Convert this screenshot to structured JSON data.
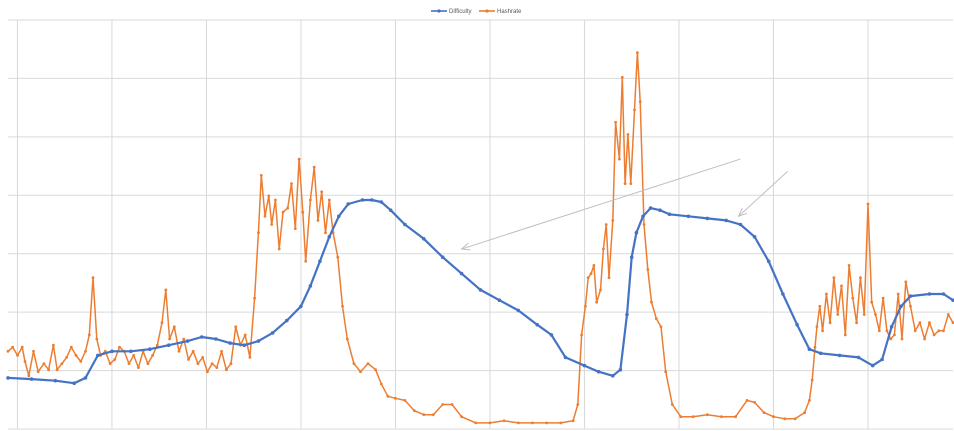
{
  "chart_data": {
    "type": "line",
    "title": "",
    "xlabel": "",
    "ylabel": "",
    "grid": true,
    "legend_position": "top-center",
    "xlim": [
      0,
      1000
    ],
    "ylim": [
      0,
      100
    ],
    "colors": {
      "difficulty": "#4472C4",
      "hashrate": "#ED7D31",
      "gridline": "#D9D9D9",
      "annotation_arrow": "#BFBFBF"
    },
    "series": [
      {
        "name": "Difficulty",
        "color": "#4472C4",
        "marker": "circle",
        "points": [
          [
            0,
            12.5
          ],
          [
            25,
            12.2
          ],
          [
            50,
            11.8
          ],
          [
            70,
            11.2
          ],
          [
            82,
            12.5
          ],
          [
            95,
            18
          ],
          [
            110,
            19
          ],
          [
            130,
            19
          ],
          [
            150,
            19.5
          ],
          [
            170,
            20.5
          ],
          [
            190,
            21.5
          ],
          [
            205,
            22.5
          ],
          [
            220,
            22
          ],
          [
            235,
            21
          ],
          [
            250,
            20.5
          ],
          [
            265,
            21.5
          ],
          [
            280,
            23.5
          ],
          [
            295,
            26.5
          ],
          [
            310,
            30
          ],
          [
            320,
            35
          ],
          [
            330,
            41
          ],
          [
            340,
            47
          ],
          [
            350,
            52
          ],
          [
            360,
            55
          ],
          [
            375,
            56
          ],
          [
            385,
            56
          ],
          [
            395,
            55.5
          ],
          [
            405,
            53.5
          ],
          [
            420,
            50
          ],
          [
            440,
            46.5
          ],
          [
            460,
            42
          ],
          [
            480,
            38
          ],
          [
            500,
            34
          ],
          [
            520,
            31.5
          ],
          [
            540,
            29
          ],
          [
            560,
            25.5
          ],
          [
            575,
            23
          ],
          [
            590,
            17.5
          ],
          [
            610,
            15.5
          ],
          [
            625,
            14
          ],
          [
            640,
            13
          ],
          [
            648,
            14.5
          ],
          [
            655,
            28
          ],
          [
            660,
            42
          ],
          [
            665,
            48
          ],
          [
            672,
            52
          ],
          [
            680,
            54
          ],
          [
            690,
            53.5
          ],
          [
            700,
            52.5
          ],
          [
            720,
            52
          ],
          [
            740,
            51.5
          ],
          [
            760,
            51
          ],
          [
            775,
            50
          ],
          [
            790,
            47
          ],
          [
            805,
            41
          ],
          [
            820,
            33
          ],
          [
            835,
            25.5
          ],
          [
            848,
            19.5
          ],
          [
            860,
            18.5
          ],
          [
            880,
            18
          ],
          [
            900,
            17.5
          ],
          [
            915,
            15.5
          ],
          [
            925,
            17
          ],
          [
            935,
            25
          ],
          [
            945,
            30
          ],
          [
            955,
            32.5
          ],
          [
            975,
            33
          ],
          [
            990,
            33
          ],
          [
            1000,
            31.5
          ]
        ]
      },
      {
        "name": "Hashrate",
        "color": "#ED7D31",
        "marker": "circle",
        "points": [
          [
            0,
            19
          ],
          [
            5,
            20
          ],
          [
            10,
            18
          ],
          [
            15,
            20
          ],
          [
            18,
            16.5
          ],
          [
            22,
            13
          ],
          [
            27,
            19
          ],
          [
            32,
            14
          ],
          [
            38,
            16
          ],
          [
            43,
            14.5
          ],
          [
            48,
            20.5
          ],
          [
            52,
            14.5
          ],
          [
            57,
            16
          ],
          [
            62,
            17.5
          ],
          [
            67,
            20
          ],
          [
            72,
            18
          ],
          [
            77,
            16.5
          ],
          [
            82,
            19
          ],
          [
            86,
            23
          ],
          [
            90,
            37
          ],
          [
            94,
            22
          ],
          [
            98,
            18
          ],
          [
            103,
            19
          ],
          [
            108,
            16
          ],
          [
            113,
            17
          ],
          [
            118,
            20
          ],
          [
            123,
            19
          ],
          [
            128,
            16
          ],
          [
            133,
            18
          ],
          [
            138,
            15
          ],
          [
            143,
            19
          ],
          [
            148,
            16
          ],
          [
            153,
            18
          ],
          [
            158,
            20.5
          ],
          [
            163,
            26
          ],
          [
            167,
            34
          ],
          [
            171,
            22
          ],
          [
            176,
            25
          ],
          [
            181,
            19
          ],
          [
            186,
            22
          ],
          [
            191,
            17
          ],
          [
            196,
            19
          ],
          [
            201,
            16
          ],
          [
            206,
            17.5
          ],
          [
            211,
            14
          ],
          [
            216,
            16
          ],
          [
            221,
            15
          ],
          [
            226,
            19
          ],
          [
            231,
            14.5
          ],
          [
            236,
            16
          ],
          [
            241,
            25
          ],
          [
            246,
            20.5
          ],
          [
            251,
            23
          ],
          [
            256,
            17.5
          ],
          [
            261,
            32
          ],
          [
            265,
            48
          ],
          [
            268,
            62
          ],
          [
            272,
            52
          ],
          [
            276,
            57
          ],
          [
            279,
            50
          ],
          [
            283,
            56
          ],
          [
            287,
            44
          ],
          [
            291,
            53
          ],
          [
            296,
            54
          ],
          [
            300,
            60
          ],
          [
            304,
            49
          ],
          [
            308,
            66
          ],
          [
            312,
            53
          ],
          [
            315,
            41
          ],
          [
            320,
            56
          ],
          [
            324,
            64
          ],
          [
            328,
            51
          ],
          [
            332,
            58
          ],
          [
            336,
            48
          ],
          [
            340,
            56
          ],
          [
            344,
            48
          ],
          [
            349,
            42
          ],
          [
            354,
            30
          ],
          [
            359,
            22
          ],
          [
            366,
            16
          ],
          [
            373,
            14
          ],
          [
            381,
            16
          ],
          [
            389,
            14.5
          ],
          [
            395,
            11
          ],
          [
            402,
            8
          ],
          [
            410,
            7.5
          ],
          [
            420,
            7
          ],
          [
            430,
            4.5
          ],
          [
            440,
            3.5
          ],
          [
            450,
            3.5
          ],
          [
            460,
            6
          ],
          [
            470,
            6
          ],
          [
            480,
            3
          ],
          [
            495,
            1.5
          ],
          [
            510,
            1.5
          ],
          [
            525,
            2
          ],
          [
            540,
            1.5
          ],
          [
            555,
            1.5
          ],
          [
            570,
            1.5
          ],
          [
            585,
            1.5
          ],
          [
            598,
            2
          ],
          [
            603,
            6
          ],
          [
            607,
            23
          ],
          [
            611,
            30
          ],
          [
            614,
            37
          ],
          [
            617,
            38
          ],
          [
            620,
            40
          ],
          [
            623,
            31
          ],
          [
            627,
            34
          ],
          [
            630,
            44
          ],
          [
            633,
            50
          ],
          [
            636,
            37
          ],
          [
            640,
            51
          ],
          [
            643,
            75
          ],
          [
            647,
            66
          ],
          [
            650,
            86
          ],
          [
            653,
            60
          ],
          [
            656,
            72
          ],
          [
            659,
            60
          ],
          [
            663,
            78
          ],
          [
            666,
            92
          ],
          [
            669,
            80
          ],
          [
            673,
            50
          ],
          [
            677,
            39
          ],
          [
            681,
            31
          ],
          [
            686,
            27
          ],
          [
            691,
            25
          ],
          [
            696,
            14
          ],
          [
            703,
            6
          ],
          [
            712,
            3
          ],
          [
            725,
            3
          ],
          [
            740,
            3.5
          ],
          [
            755,
            3
          ],
          [
            770,
            3
          ],
          [
            782,
            7
          ],
          [
            790,
            6.5
          ],
          [
            800,
            4
          ],
          [
            810,
            3
          ],
          [
            822,
            2.5
          ],
          [
            833,
            2.5
          ],
          [
            843,
            4
          ],
          [
            848,
            7
          ],
          [
            851,
            12
          ],
          [
            854,
            20
          ],
          [
            856,
            25
          ],
          [
            859,
            30
          ],
          [
            862,
            24
          ],
          [
            866,
            33
          ],
          [
            870,
            26
          ],
          [
            874,
            37
          ],
          [
            878,
            28
          ],
          [
            882,
            35
          ],
          [
            886,
            23
          ],
          [
            890,
            40
          ],
          [
            894,
            32
          ],
          [
            898,
            26
          ],
          [
            902,
            37
          ],
          [
            906,
            28
          ],
          [
            910,
            55
          ],
          [
            914,
            31
          ],
          [
            918,
            28
          ],
          [
            922,
            24
          ],
          [
            926,
            32
          ],
          [
            930,
            24
          ],
          [
            934,
            22
          ],
          [
            938,
            23
          ],
          [
            942,
            33
          ],
          [
            946,
            22
          ],
          [
            950,
            36
          ],
          [
            955,
            30
          ],
          [
            960,
            24
          ],
          [
            965,
            26
          ],
          [
            970,
            22
          ],
          [
            975,
            26
          ],
          [
            980,
            23
          ],
          [
            985,
            24
          ],
          [
            990,
            24
          ],
          [
            995,
            28
          ],
          [
            1000,
            26
          ]
        ]
      }
    ],
    "annotations": [
      {
        "type": "arrow",
        "from": [
          775,
          66
        ],
        "to": [
          480,
          44
        ]
      },
      {
        "type": "arrow",
        "from": [
          825,
          63
        ],
        "to": [
          773,
          52
        ]
      }
    ]
  }
}
